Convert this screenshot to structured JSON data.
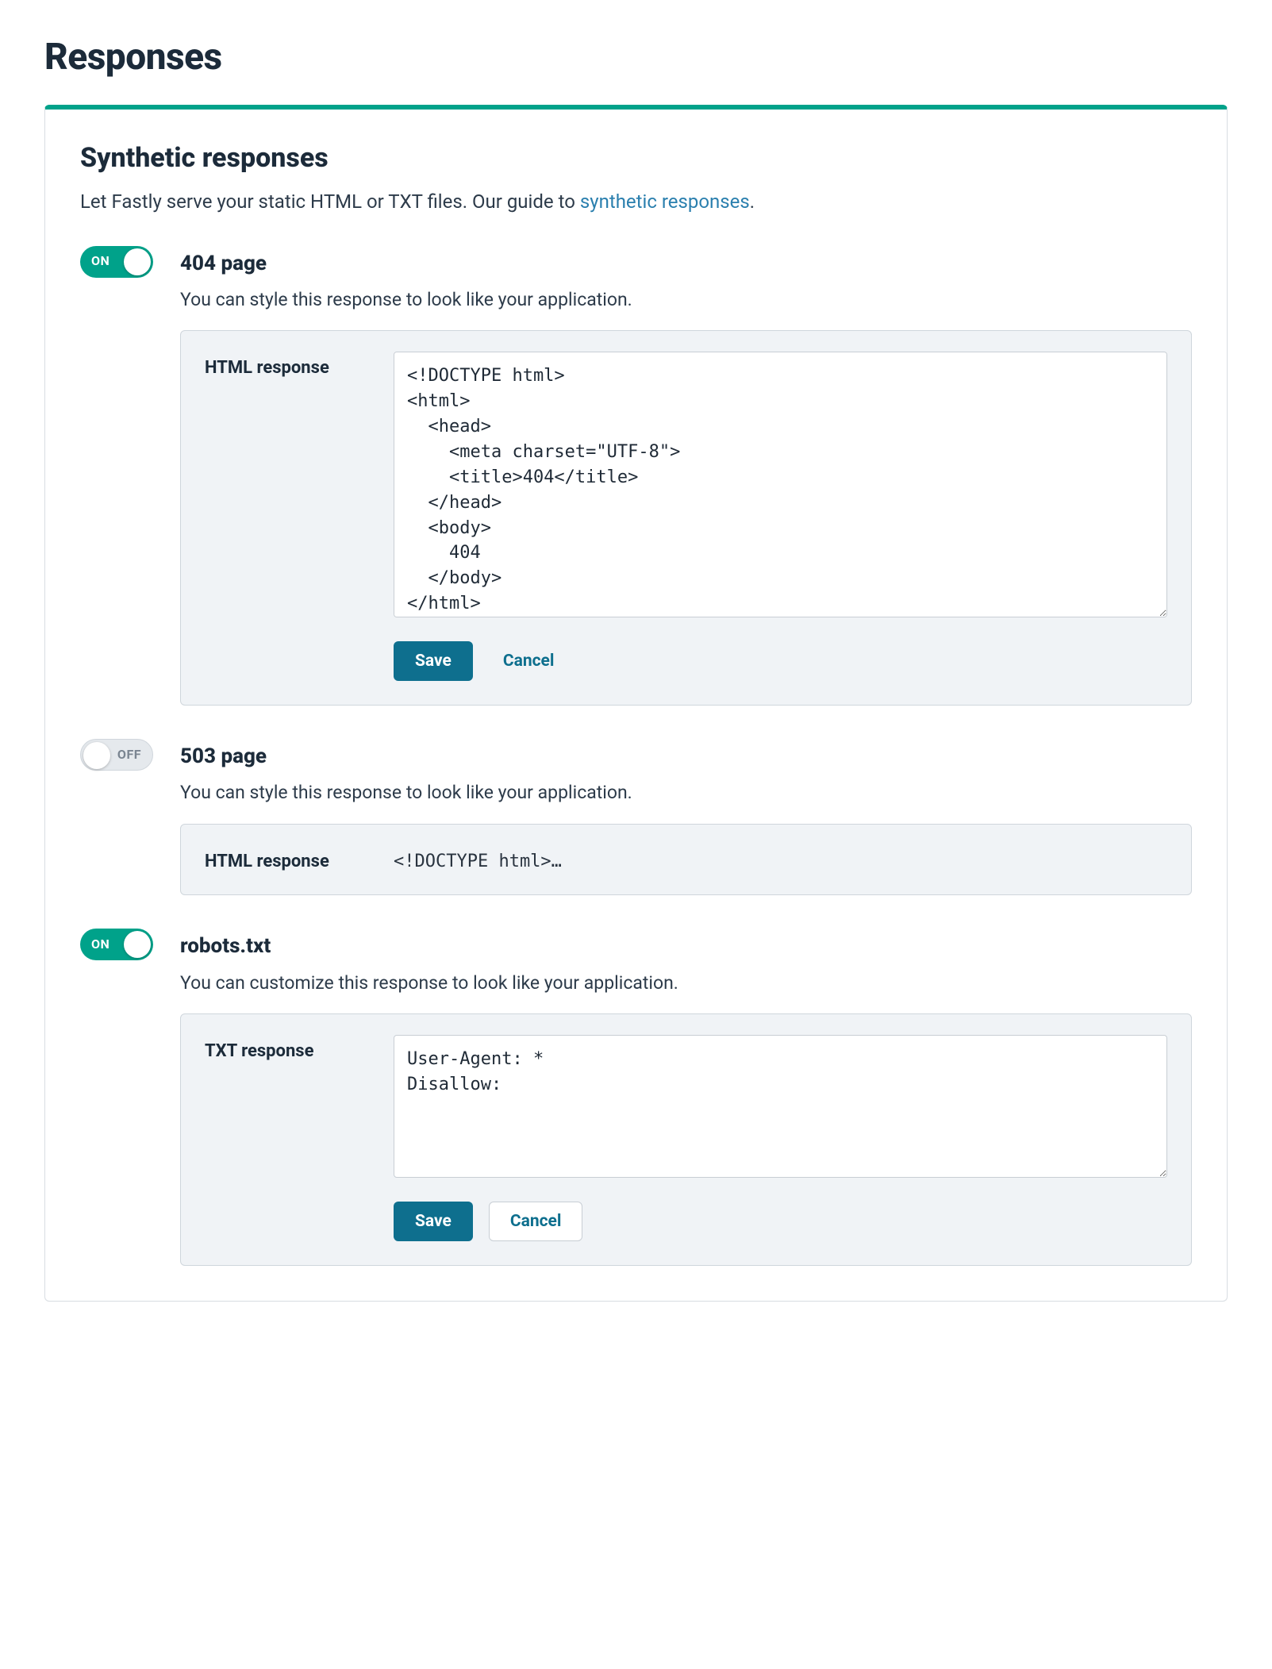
{
  "colors": {
    "accent_teal": "#00a28a",
    "save_button": "#0e6f8e",
    "link": "#2a7fae",
    "text_primary": "#1c2b3a",
    "text_secondary": "#2d3b4a",
    "panel_bg": "#f0f3f6",
    "panel_border": "#cfd6dc",
    "card_border": "#d9dee3",
    "toggle_off_bg": "#e5e9ed",
    "toggle_off_text": "#7a8591",
    "page_bg": "#ffffff"
  },
  "page": {
    "title": "Responses"
  },
  "section": {
    "heading": "Synthetic responses",
    "lede_prefix": "Let Fastly serve your static HTML or TXT files. Our guide to ",
    "lede_link_text": "synthetic responses",
    "lede_suffix": "."
  },
  "toggle": {
    "on_label": "ON",
    "off_label": "OFF"
  },
  "buttons": {
    "save": "Save",
    "cancel": "Cancel"
  },
  "rows": {
    "r404": {
      "enabled": true,
      "title": "404 page",
      "desc": "You can style this response to look like your application.",
      "field_label": "HTML response",
      "textarea_value": "<!DOCTYPE html>\n<html>\n  <head>\n    <meta charset=\"UTF-8\">\n    <title>404</title>\n  </head>\n  <body>\n    404\n  </body>\n</html>"
    },
    "r503": {
      "enabled": false,
      "title": "503 page",
      "desc": "You can style this response to look like your application.",
      "field_label": "HTML response",
      "collapsed_preview": "<!DOCTYPE html>…"
    },
    "robots": {
      "enabled": true,
      "title": "robots.txt",
      "desc": "You can customize this response to look like your application.",
      "field_label": "TXT response",
      "textarea_value": "User-Agent: *\nDisallow:"
    }
  }
}
